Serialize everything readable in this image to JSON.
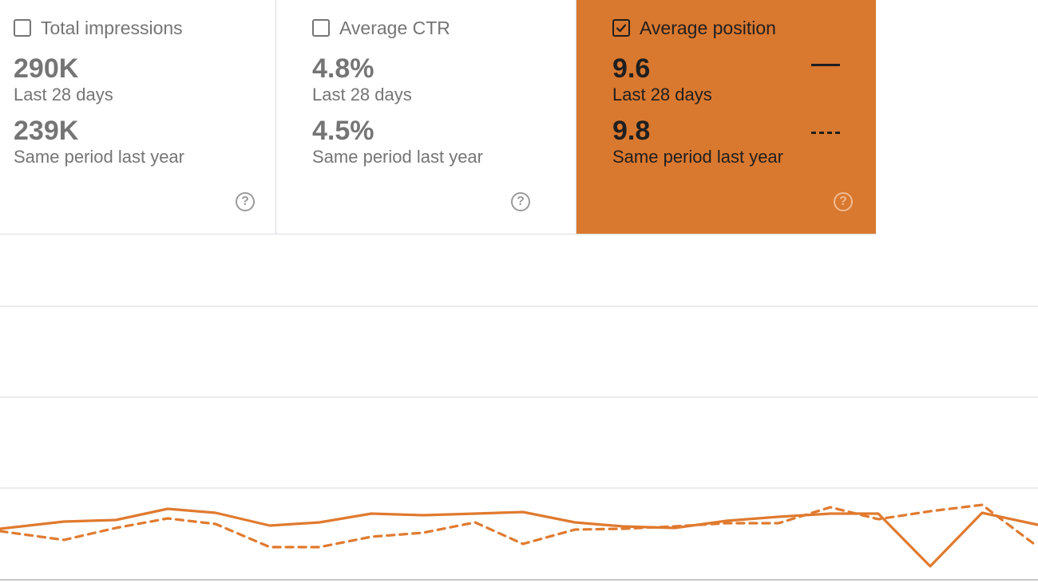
{
  "colors": {
    "accent": "#d9782f",
    "card_selected_bg": "#d9782f",
    "line": "#e07a2f",
    "grid": "#e5e5e5",
    "axis": "#c8c8c8"
  },
  "cards": [
    {
      "title": "Total impressions",
      "checked": false,
      "value": "290K",
      "value_label": "Last 28 days",
      "compare_value": "239K",
      "compare_label": "Same period last year",
      "help_icon": "help-circle-icon"
    },
    {
      "title": "Average CTR",
      "checked": false,
      "value": "4.8%",
      "value_label": "Last 28 days",
      "compare_value": "4.5%",
      "compare_label": "Same period last year",
      "help_icon": "help-circle-icon"
    },
    {
      "title": "Average position",
      "checked": true,
      "value": "9.6",
      "value_label": "Last 28 days",
      "compare_value": "9.8",
      "compare_label": "Same period last year",
      "help_icon": "help-circle-icon"
    }
  ],
  "chart_data": {
    "type": "line",
    "ylim": [
      0,
      100
    ],
    "grid": true,
    "y_reversed": false,
    "series": [
      {
        "style": "solid",
        "values": [
          5,
          13,
          21,
          22,
          30,
          27,
          21,
          22,
          25,
          24,
          25,
          25,
          22,
          19,
          20,
          22,
          24,
          25,
          25,
          15,
          26,
          18
        ]
      },
      {
        "style": "dashed",
        "values": [
          4,
          0,
          14,
          19,
          18,
          10,
          9,
          11,
          18,
          1,
          16,
          14,
          15,
          18,
          23,
          24,
          15,
          22,
          27,
          26,
          2,
          30
        ]
      }
    ],
    "solid_points_raw": [
      [
        0,
        663
      ],
      [
        80,
        654
      ],
      [
        145,
        652
      ],
      [
        210,
        638
      ],
      [
        270,
        643
      ],
      [
        338,
        659
      ],
      [
        400,
        655
      ],
      [
        465,
        644
      ],
      [
        530,
        646
      ],
      [
        595,
        644
      ],
      [
        655,
        642
      ],
      [
        720,
        655
      ],
      [
        780,
        660
      ],
      [
        845,
        662
      ],
      [
        910,
        653
      ],
      [
        975,
        648
      ],
      [
        1040,
        644
      ],
      [
        1100,
        644
      ],
      [
        1165,
        710
      ],
      [
        1230,
        643
      ],
      [
        1295,
        657
      ],
      [
        1300,
        658
      ]
    ],
    "dashed_points_raw": [
      [
        0,
        666
      ],
      [
        80,
        677
      ],
      [
        145,
        662
      ],
      [
        210,
        650
      ],
      [
        270,
        657
      ],
      [
        338,
        686
      ],
      [
        400,
        686
      ],
      [
        465,
        673
      ],
      [
        530,
        668
      ],
      [
        595,
        655
      ],
      [
        655,
        682
      ],
      [
        720,
        664
      ],
      [
        780,
        663
      ],
      [
        845,
        660
      ],
      [
        910,
        656
      ],
      [
        975,
        656
      ],
      [
        1040,
        636
      ],
      [
        1100,
        651
      ],
      [
        1165,
        641
      ],
      [
        1230,
        633
      ],
      [
        1295,
        682
      ],
      [
        1300,
        684
      ]
    ]
  }
}
